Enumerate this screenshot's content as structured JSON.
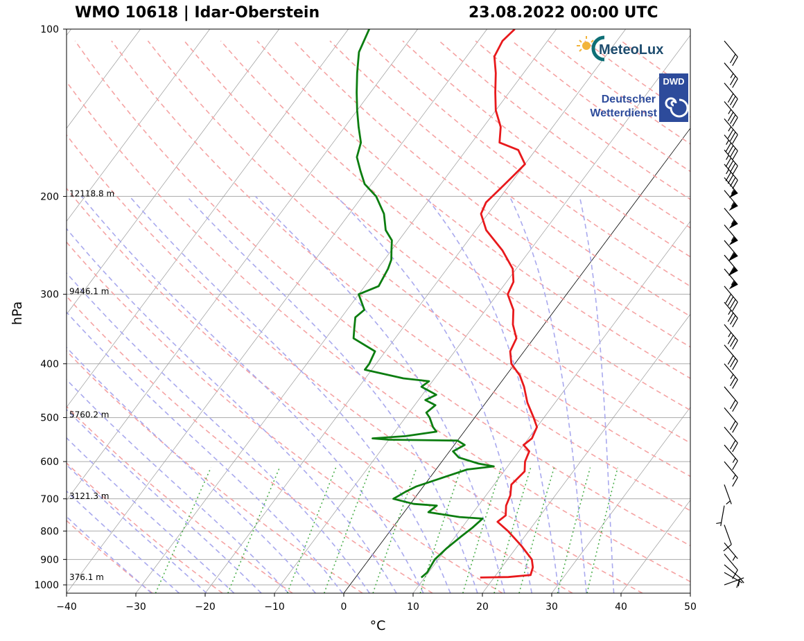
{
  "title": {
    "left": "WMO 10618 | Idar-Oberstein",
    "right": "23.08.2022 00:00 UTC"
  },
  "logos": {
    "meteolux": "MeteoLux",
    "dwd_badge": "DWD",
    "dwd_name_1": "Deutscher",
    "dwd_name_2": "Wetterdienst"
  },
  "colors": {
    "temperature": "#e8191c",
    "dewpoint": "#0c7d10",
    "dry_adiabat": "#f5a3a3",
    "moist_adiabat": "#a9a9ee",
    "mixing_ratio": "#4cae4c",
    "isotherm": "#999999",
    "isobar": "#aaaaaa"
  },
  "chart_data": {
    "type": "skew-t",
    "xlabel": "°C",
    "ylabel": "hPa",
    "xlim": [
      -40,
      50
    ],
    "ylim": [
      1035,
      100
    ],
    "x_ticks": [
      -40,
      -30,
      -20,
      -10,
      0,
      10,
      20,
      30,
      40,
      50
    ],
    "x_tick_labels": [
      "−40",
      "−30",
      "−20",
      "−10",
      "0",
      "10",
      "20",
      "30",
      "40",
      "50"
    ],
    "y_ticks": [
      100,
      200,
      300,
      400,
      500,
      600,
      700,
      800,
      900,
      1000
    ],
    "y_tick_labels": [
      "100",
      "200",
      "300",
      "400",
      "500",
      "600",
      "700",
      "800",
      "900",
      "1000"
    ],
    "height_labels": [
      {
        "p": 200,
        "text": "12118.8 m"
      },
      {
        "p": 300,
        "text": "9446.1 m"
      },
      {
        "p": 500,
        "text": "5760.2 m"
      },
      {
        "p": 700,
        "text": "3121.3 m"
      },
      {
        "p": 980,
        "text": "376.1 m"
      }
    ],
    "temperature": [
      {
        "p": 970,
        "t": 18.0
      },
      {
        "p": 968,
        "t": 22.0
      },
      {
        "p": 960,
        "t": 25.0
      },
      {
        "p": 930,
        "t": 24.5
      },
      {
        "p": 900,
        "t": 23.5
      },
      {
        "p": 850,
        "t": 20.5
      },
      {
        "p": 800,
        "t": 17.0
      },
      {
        "p": 770,
        "t": 14.5
      },
      {
        "p": 750,
        "t": 15.0
      },
      {
        "p": 720,
        "t": 14.0
      },
      {
        "p": 690,
        "t": 13.5
      },
      {
        "p": 660,
        "t": 12.5
      },
      {
        "p": 625,
        "t": 13.0
      },
      {
        "p": 600,
        "t": 12.0
      },
      {
        "p": 575,
        "t": 11.5
      },
      {
        "p": 560,
        "t": 10.0
      },
      {
        "p": 545,
        "t": 10.5
      },
      {
        "p": 520,
        "t": 10.0
      },
      {
        "p": 500,
        "t": 8.5
      },
      {
        "p": 470,
        "t": 6.0
      },
      {
        "p": 440,
        "t": 3.8
      },
      {
        "p": 420,
        "t": 2.0
      },
      {
        "p": 400,
        "t": -0.5
      },
      {
        "p": 380,
        "t": -2.0
      },
      {
        "p": 360,
        "t": -2.5
      },
      {
        "p": 340,
        "t": -4.5
      },
      {
        "p": 320,
        "t": -6.0
      },
      {
        "p": 300,
        "t": -8.5
      },
      {
        "p": 285,
        "t": -9.0
      },
      {
        "p": 270,
        "t": -10.5
      },
      {
        "p": 250,
        "t": -14.0
      },
      {
        "p": 230,
        "t": -18.5
      },
      {
        "p": 215,
        "t": -21.0
      },
      {
        "p": 205,
        "t": -21.5
      },
      {
        "p": 195,
        "t": -21.0
      },
      {
        "p": 185,
        "t": -20.5
      },
      {
        "p": 175,
        "t": -20.0
      },
      {
        "p": 165,
        "t": -22.5
      },
      {
        "p": 160,
        "t": -26.0
      },
      {
        "p": 150,
        "t": -27.5
      },
      {
        "p": 140,
        "t": -30.0
      },
      {
        "p": 130,
        "t": -32.0
      },
      {
        "p": 120,
        "t": -34.0
      },
      {
        "p": 112,
        "t": -36.0
      },
      {
        "p": 105,
        "t": -36.5
      },
      {
        "p": 100,
        "t": -36.0
      }
    ],
    "dewpoint": [
      {
        "p": 970,
        "t": 9.5
      },
      {
        "p": 950,
        "t": 9.8
      },
      {
        "p": 900,
        "t": 9.5
      },
      {
        "p": 860,
        "t": 10.0
      },
      {
        "p": 820,
        "t": 10.8
      },
      {
        "p": 790,
        "t": 11.5
      },
      {
        "p": 760,
        "t": 12.0
      },
      {
        "p": 755,
        "t": 8.5
      },
      {
        "p": 740,
        "t": 3.5
      },
      {
        "p": 720,
        "t": 4.0
      },
      {
        "p": 715,
        "t": 0.5
      },
      {
        "p": 700,
        "t": -3.0
      },
      {
        "p": 690,
        "t": -2.5
      },
      {
        "p": 680,
        "t": -2.0
      },
      {
        "p": 665,
        "t": -1.0
      },
      {
        "p": 640,
        "t": 2.0
      },
      {
        "p": 620,
        "t": 4.5
      },
      {
        "p": 612,
        "t": 8.0
      },
      {
        "p": 605,
        "t": 5.5
      },
      {
        "p": 590,
        "t": 2.0
      },
      {
        "p": 575,
        "t": 0.5
      },
      {
        "p": 560,
        "t": 1.5
      },
      {
        "p": 550,
        "t": 0.0
      },
      {
        "p": 548,
        "t": -10.0
      },
      {
        "p": 545,
        "t": -12.5
      },
      {
        "p": 540,
        "t": -8.0
      },
      {
        "p": 530,
        "t": -4.0
      },
      {
        "p": 520,
        "t": -5.0
      },
      {
        "p": 500,
        "t": -6.5
      },
      {
        "p": 490,
        "t": -7.5
      },
      {
        "p": 475,
        "t": -7.0
      },
      {
        "p": 465,
        "t": -9.0
      },
      {
        "p": 455,
        "t": -8.0
      },
      {
        "p": 440,
        "t": -11.0
      },
      {
        "p": 430,
        "t": -10.5
      },
      {
        "p": 425,
        "t": -14.5
      },
      {
        "p": 410,
        "t": -21.0
      },
      {
        "p": 400,
        "t": -21.0
      },
      {
        "p": 380,
        "t": -21.5
      },
      {
        "p": 360,
        "t": -26.0
      },
      {
        "p": 345,
        "t": -27.0
      },
      {
        "p": 330,
        "t": -28.0
      },
      {
        "p": 320,
        "t": -27.5
      },
      {
        "p": 300,
        "t": -30.0
      },
      {
        "p": 290,
        "t": -28.0
      },
      {
        "p": 270,
        "t": -28.5
      },
      {
        "p": 260,
        "t": -29.0
      },
      {
        "p": 250,
        "t": -30.0
      },
      {
        "p": 240,
        "t": -31.0
      },
      {
        "p": 230,
        "t": -33.0
      },
      {
        "p": 215,
        "t": -35.0
      },
      {
        "p": 200,
        "t": -38.0
      },
      {
        "p": 190,
        "t": -41.0
      },
      {
        "p": 180,
        "t": -43.0
      },
      {
        "p": 170,
        "t": -45.0
      },
      {
        "p": 160,
        "t": -46.0
      },
      {
        "p": 150,
        "t": -48.0
      },
      {
        "p": 140,
        "t": -50.0
      },
      {
        "p": 130,
        "t": -52.0
      },
      {
        "p": 120,
        "t": -54.0
      },
      {
        "p": 110,
        "t": -56.0
      },
      {
        "p": 100,
        "t": -57.0
      }
    ],
    "wind_barbs": [
      {
        "p": 1000,
        "speed_kt": 5,
        "dir": 250
      },
      {
        "p": 950,
        "speed_kt": 5,
        "dir": 300
      },
      {
        "p": 920,
        "speed_kt": 10,
        "dir": 310
      },
      {
        "p": 880,
        "speed_kt": 10,
        "dir": 320
      },
      {
        "p": 840,
        "speed_kt": 5,
        "dir": 320
      },
      {
        "p": 780,
        "speed_kt": 10,
        "dir": 340
      },
      {
        "p": 720,
        "speed_kt": 5,
        "dir": 10
      },
      {
        "p": 660,
        "speed_kt": 5,
        "dir": 340
      },
      {
        "p": 600,
        "speed_kt": 15,
        "dir": 320
      },
      {
        "p": 560,
        "speed_kt": 15,
        "dir": 320
      },
      {
        "p": 520,
        "speed_kt": 20,
        "dir": 320
      },
      {
        "p": 480,
        "speed_kt": 20,
        "dir": 320
      },
      {
        "p": 440,
        "speed_kt": 20,
        "dir": 320
      },
      {
        "p": 400,
        "speed_kt": 25,
        "dir": 320
      },
      {
        "p": 370,
        "speed_kt": 30,
        "dir": 320
      },
      {
        "p": 340,
        "speed_kt": 35,
        "dir": 320
      },
      {
        "p": 310,
        "speed_kt": 35,
        "dir": 320
      },
      {
        "p": 290,
        "speed_kt": 40,
        "dir": 320
      },
      {
        "p": 270,
        "speed_kt": 55,
        "dir": 320
      },
      {
        "p": 255,
        "speed_kt": 60,
        "dir": 320
      },
      {
        "p": 240,
        "speed_kt": 60,
        "dir": 320
      },
      {
        "p": 225,
        "speed_kt": 55,
        "dir": 320
      },
      {
        "p": 210,
        "speed_kt": 55,
        "dir": 320
      },
      {
        "p": 195,
        "speed_kt": 55,
        "dir": 320
      },
      {
        "p": 185,
        "speed_kt": 55,
        "dir": 320
      },
      {
        "p": 175,
        "speed_kt": 45,
        "dir": 320
      },
      {
        "p": 165,
        "speed_kt": 45,
        "dir": 320
      },
      {
        "p": 155,
        "speed_kt": 45,
        "dir": 320
      },
      {
        "p": 145,
        "speed_kt": 35,
        "dir": 320
      },
      {
        "p": 135,
        "speed_kt": 35,
        "dir": 320
      },
      {
        "p": 125,
        "speed_kt": 30,
        "dir": 320
      },
      {
        "p": 115,
        "speed_kt": 25,
        "dir": 320
      },
      {
        "p": 105,
        "speed_kt": 20,
        "dir": 320
      }
    ]
  }
}
